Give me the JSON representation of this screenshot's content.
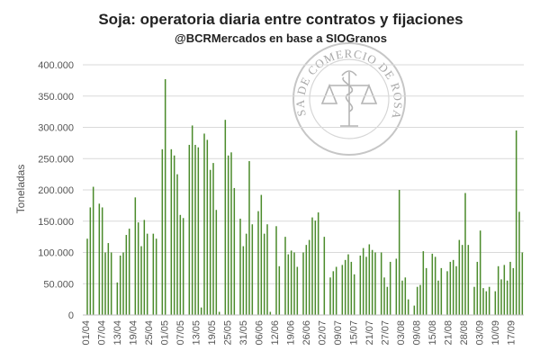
{
  "chart_data": {
    "type": "bar",
    "title": "Soja: operatoria diaria entre contratos y fijaciones",
    "subtitle": "@BCRMercados en base a SIOGranos",
    "ylabel": "Toneladas",
    "xlabel": "",
    "ylim": [
      0,
      400000
    ],
    "yticks": [
      "0",
      "50.000",
      "100.000",
      "150.000",
      "200.000",
      "250.000",
      "300.000",
      "350.000",
      "400.000"
    ],
    "ytick_values": [
      0,
      50000,
      100000,
      150000,
      200000,
      250000,
      300000,
      350000,
      400000
    ],
    "grid": true,
    "legend": "none",
    "color": "#4a8a2a",
    "xtick_labels": [
      "01/04",
      "07/04",
      "13/04",
      "19/04",
      "25/04",
      "01/05",
      "07/05",
      "13/05",
      "19/05",
      "25/05",
      "31/05",
      "06/06",
      "12/06",
      "19/06",
      "26/06",
      "02/07",
      "09/07",
      "15/07",
      "21/07",
      "27/07",
      "03/08",
      "09/08",
      "15/08",
      "21/08",
      "28/08",
      "03/09",
      "10/09",
      "17/09"
    ],
    "values": [
      0,
      122000,
      172000,
      205000,
      0,
      178000,
      172000,
      100000,
      115000,
      100000,
      0,
      52000,
      95000,
      100000,
      128000,
      138000,
      0,
      188000,
      148000,
      110000,
      152000,
      130000,
      0,
      130000,
      122000,
      0,
      265000,
      377000,
      0,
      265000,
      255000,
      225000,
      160000,
      155000,
      0,
      272000,
      303000,
      272000,
      268000,
      12000,
      290000,
      280000,
      232000,
      243000,
      168000,
      5000,
      0,
      312000,
      255000,
      260000,
      203000,
      0,
      154000,
      110000,
      130000,
      246000,
      145000,
      0,
      166000,
      192000,
      130000,
      145000,
      5000,
      0,
      142000,
      78000,
      0,
      125000,
      97000,
      103000,
      100000,
      77000,
      0,
      100000,
      112000,
      120000,
      156000,
      151000,
      164000,
      0,
      125000,
      0,
      60000,
      70000,
      77000,
      0,
      80000,
      88000,
      97000,
      85000,
      65000,
      0,
      95000,
      107000,
      93000,
      113000,
      104000,
      100000,
      0,
      100000,
      60000,
      45000,
      85000,
      0,
      90000,
      200000,
      55000,
      60000,
      25000,
      0,
      15000,
      45000,
      48000,
      102000,
      75000,
      0,
      98000,
      93000,
      55000,
      75000,
      0,
      70000,
      85000,
      88000,
      78000,
      120000,
      112000,
      195000,
      112000,
      0,
      45000,
      85000,
      135000,
      43000,
      38000,
      45000,
      0,
      38000,
      78000,
      57000,
      80000,
      55000,
      85000,
      75000,
      295000,
      165000,
      100000
    ]
  },
  "watermark": {
    "text": "BOLSA DE COMERCIO DE ROSARIO",
    "icon": "scales-of-justice-seal-icon"
  }
}
